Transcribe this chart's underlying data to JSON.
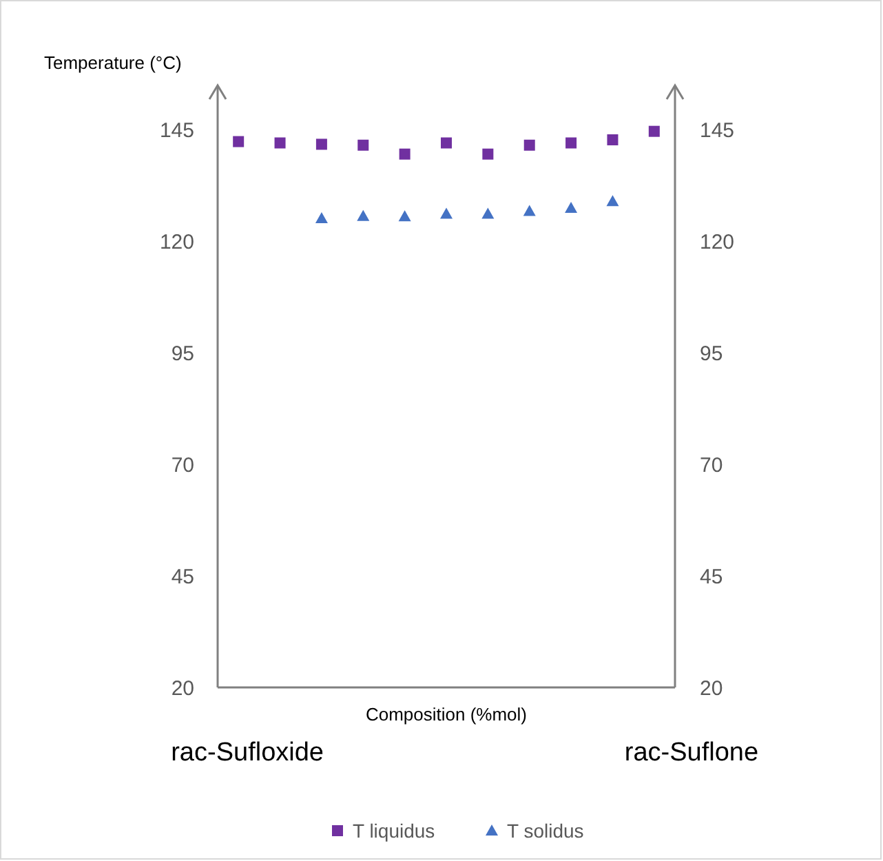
{
  "chart_data": {
    "type": "scatter",
    "xlabel": "Composition (%mol)",
    "ylabel": "Temperature (°C)",
    "categories": [
      null,
      null,
      null,
      null,
      null,
      null,
      null,
      null,
      null,
      null,
      null
    ],
    "ylim": [
      20,
      155
    ],
    "yticks": [
      20,
      45,
      70,
      95,
      120,
      145
    ],
    "y2lim": [
      20,
      155
    ],
    "y2ticks": [
      20,
      45,
      70,
      95,
      120,
      145
    ],
    "series": [
      {
        "name": "T liquidus",
        "color": "#7030a0",
        "marker": "square",
        "values": [
          142.4,
          142.1,
          141.8,
          141.6,
          139.6,
          142.1,
          139.6,
          141.6,
          142.1,
          142.8,
          144.7
        ]
      },
      {
        "name": "T solidus",
        "color": "#4472c4",
        "marker": "triangle",
        "values": [
          null,
          null,
          125.2,
          125.7,
          125.6,
          126.2,
          126.2,
          126.8,
          127.5,
          129.0,
          null
        ]
      }
    ],
    "annotations": [
      "rac-Sufloxide",
      "rac-Suflone"
    ],
    "grid": false,
    "legend": "bottom"
  }
}
